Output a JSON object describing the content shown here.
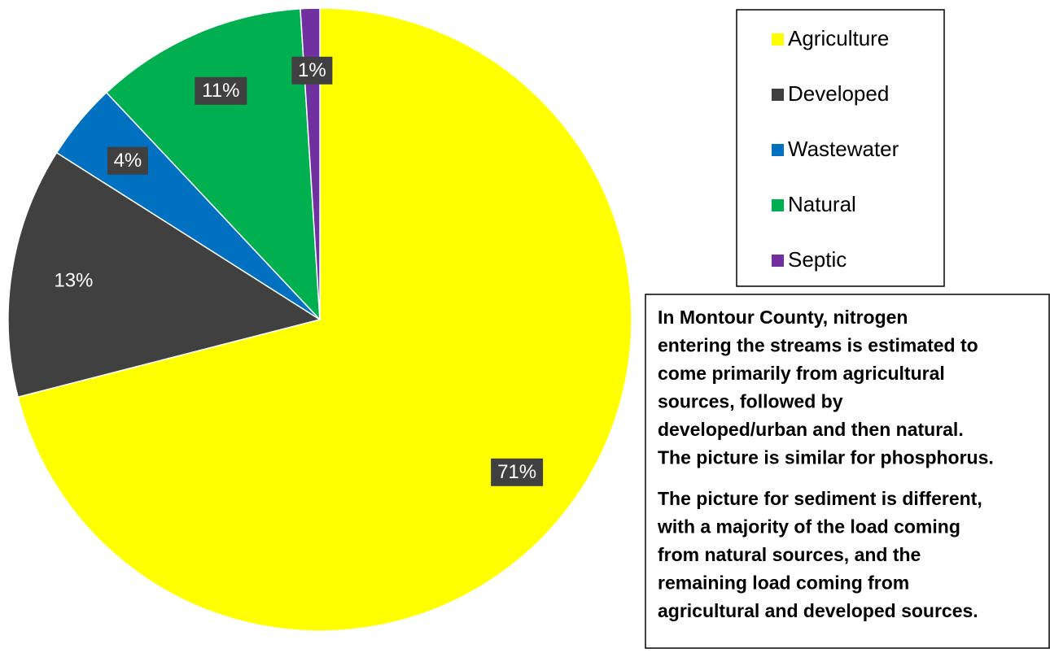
{
  "chart_data": {
    "type": "pie",
    "categories": [
      "Agriculture",
      "Developed",
      "Wastewater",
      "Natural",
      "Septic"
    ],
    "values": [
      71,
      13,
      4,
      11,
      1
    ],
    "value_labels": [
      "71%",
      "13%",
      "4%",
      "11%",
      "1%"
    ],
    "colors": [
      "#FFFF00",
      "#404040",
      "#0070C0",
      "#00B050",
      "#7030A0"
    ],
    "legend": "right"
  },
  "note": {
    "paragraphs": [
      [
        "In Montour County, nitrogen",
        "entering the streams is estimated to",
        "come primarily from agricultural",
        "sources, followed by",
        "developed/urban and then natural.",
        "The picture is similar for phosphorus."
      ],
      [
        "The picture for sediment is different,",
        "with a majority of the load coming",
        "from natural sources, and the",
        "remaining load coming from",
        "agricultural and developed sources."
      ]
    ]
  }
}
